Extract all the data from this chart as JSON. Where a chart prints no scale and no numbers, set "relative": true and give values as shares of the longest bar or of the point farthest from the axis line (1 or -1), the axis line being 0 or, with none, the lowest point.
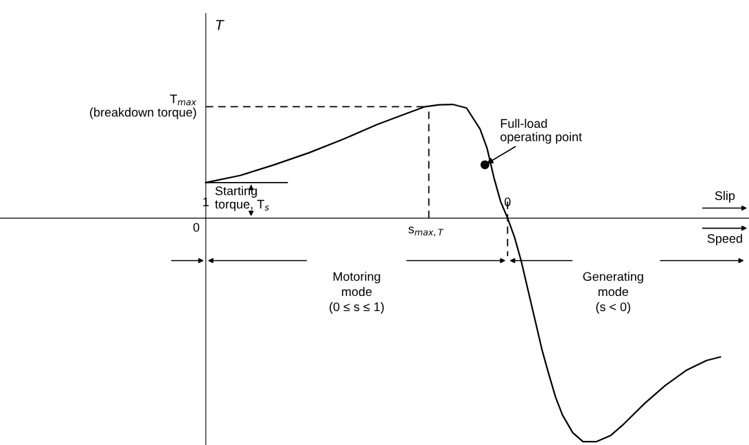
{
  "chart_data": {
    "type": "line",
    "relative": true,
    "xlim": [
      1.682,
      -0.8
    ],
    "xticks": [
      {
        "value": 1,
        "label": "1"
      },
      {
        "value": 0,
        "label": "0"
      }
    ],
    "series": [
      {
        "color": "#000000",
        "x": [
          1,
          0.886,
          0.773,
          0.659,
          0.545,
          0.432,
          0.318,
          0.273,
          0.227,
          0.182,
          0.136,
          0.091,
          0.068,
          0.045,
          0.023,
          0,
          -0.023,
          -0.045,
          -0.068,
          -0.091,
          -0.114,
          -0.136,
          -0.159,
          -0.182,
          -0.216,
          -0.25,
          -0.295,
          -0.341,
          -0.386,
          -0.455,
          -0.523,
          -0.591,
          -0.659,
          -0.705
        ],
        "values": [
          0.159,
          0.191,
          0.239,
          0.292,
          0.353,
          0.419,
          0.477,
          0.499,
          0.507,
          0.509,
          0.493,
          0.398,
          0.313,
          0.18,
          0.074,
          0,
          -0.085,
          -0.191,
          -0.324,
          -0.456,
          -0.589,
          -0.695,
          -0.801,
          -0.881,
          -0.96,
          -1.0,
          -1.0,
          -0.973,
          -0.92,
          -0.828,
          -0.748,
          -0.682,
          -0.637,
          -0.621
        ]
      },
      {
        "type": "scatter",
        "color": "#000000",
        "marker": "circle",
        "x": [
          0.075
        ],
        "values": [
          0.239
        ]
      }
    ],
    "ref_lines": [
      {
        "axis": "y",
        "value": 0.499,
        "label": "T$_{max}$\n(breakdown torque)",
        "line_style": "dashed"
      },
      {
        "axis": "x",
        "value": 0.261,
        "label": "s$_{max,T}$",
        "line_style": "dashed"
      },
      {
        "axis": "y",
        "value": 0.159,
        "line_style": "solid"
      },
      {
        "axis": "x",
        "value": 0,
        "line_style": "dashed"
      }
    ],
    "annotations": [
      {
        "text": "Full-load\noperating point",
        "x": 0.075,
        "y": 0.239
      },
      {
        "text": "Starting\ntorque, T$_{s}$",
        "x": 1,
        "y": 0.159
      },
      "0",
      "Slip",
      "Speed",
      "Motoring\nmode\n(0 ≤ s ≤ 1)",
      "Generating\nmode\n(s < 0)",
      "T"
    ]
  }
}
